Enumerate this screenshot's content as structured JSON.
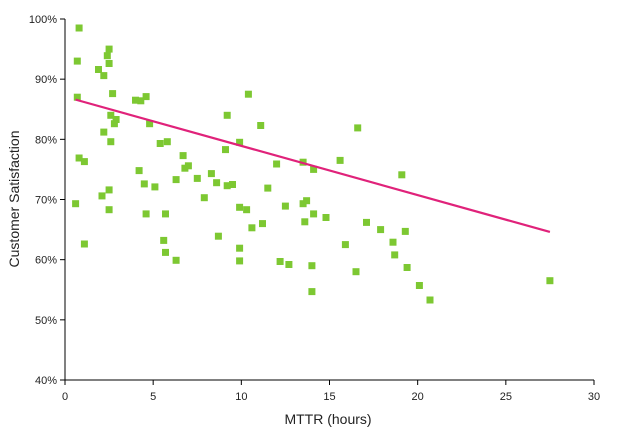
{
  "chart_data": {
    "type": "scatter",
    "title": "",
    "xlabel": "MTTR (hours)",
    "ylabel": "Customer Satisfaction",
    "xlim": [
      0,
      30
    ],
    "ylim": [
      40,
      100
    ],
    "xticks": [
      "0",
      "5",
      "10",
      "15",
      "20",
      "25",
      "30"
    ],
    "yticks": [
      "40%",
      "50%",
      "60%",
      "70%",
      "80%",
      "90%",
      "100%"
    ],
    "grid": false,
    "legend": "none",
    "colors": {
      "points": "#7dc832",
      "trendline": "#e0227a",
      "axis": "#000000"
    },
    "points": [
      [
        0.8,
        98.5
      ],
      [
        0.7,
        93.0
      ],
      [
        0.7,
        87.0
      ],
      [
        0.6,
        69.3
      ],
      [
        0.8,
        76.9
      ],
      [
        1.1,
        76.3
      ],
      [
        1.1,
        62.6
      ],
      [
        1.9,
        91.6
      ],
      [
        2.2,
        90.6
      ],
      [
        2.4,
        93.9
      ],
      [
        2.5,
        95.0
      ],
      [
        2.5,
        92.6
      ],
      [
        2.7,
        87.6
      ],
      [
        2.6,
        84.0
      ],
      [
        2.9,
        83.3
      ],
      [
        2.8,
        82.6
      ],
      [
        2.2,
        81.2
      ],
      [
        2.6,
        79.6
      ],
      [
        2.1,
        70.6
      ],
      [
        2.5,
        71.6
      ],
      [
        2.5,
        68.3
      ],
      [
        4.0,
        86.5
      ],
      [
        4.3,
        86.4
      ],
      [
        4.6,
        87.1
      ],
      [
        4.8,
        82.6
      ],
      [
        5.4,
        79.3
      ],
      [
        5.8,
        79.6
      ],
      [
        4.2,
        74.8
      ],
      [
        4.5,
        72.6
      ],
      [
        5.1,
        72.1
      ],
      [
        4.6,
        67.6
      ],
      [
        5.7,
        67.6
      ],
      [
        5.6,
        63.2
      ],
      [
        5.7,
        61.2
      ],
      [
        6.3,
        73.3
      ],
      [
        6.7,
        77.3
      ],
      [
        6.8,
        75.2
      ],
      [
        7.0,
        75.6
      ],
      [
        6.3,
        59.9
      ],
      [
        7.5,
        73.5
      ],
      [
        7.9,
        70.3
      ],
      [
        8.3,
        74.3
      ],
      [
        8.6,
        72.8
      ],
      [
        8.7,
        63.9
      ],
      [
        9.2,
        84.0
      ],
      [
        9.1,
        78.3
      ],
      [
        9.2,
        72.3
      ],
      [
        9.5,
        72.5
      ],
      [
        9.9,
        79.5
      ],
      [
        9.9,
        68.7
      ],
      [
        9.9,
        61.9
      ],
      [
        9.9,
        59.8
      ],
      [
        10.4,
        87.5
      ],
      [
        10.3,
        68.3
      ],
      [
        10.6,
        65.3
      ],
      [
        11.1,
        82.3
      ],
      [
        11.2,
        66.0
      ],
      [
        11.5,
        71.9
      ],
      [
        12.0,
        75.9
      ],
      [
        12.2,
        59.7
      ],
      [
        12.5,
        68.9
      ],
      [
        12.7,
        59.2
      ],
      [
        13.5,
        76.2
      ],
      [
        13.5,
        69.3
      ],
      [
        13.7,
        69.8
      ],
      [
        13.6,
        66.3
      ],
      [
        14.1,
        75.0
      ],
      [
        14.1,
        67.6
      ],
      [
        14.0,
        59.0
      ],
      [
        14.0,
        54.7
      ],
      [
        14.8,
        67.0
      ],
      [
        15.6,
        76.5
      ],
      [
        15.9,
        62.5
      ],
      [
        16.6,
        81.9
      ],
      [
        16.5,
        58.0
      ],
      [
        17.1,
        66.2
      ],
      [
        17.9,
        65.0
      ],
      [
        18.6,
        62.9
      ],
      [
        18.7,
        60.8
      ],
      [
        19.1,
        74.1
      ],
      [
        19.3,
        64.7
      ],
      [
        19.4,
        58.7
      ],
      [
        20.1,
        55.7
      ],
      [
        20.7,
        53.3
      ],
      [
        27.5,
        56.5
      ]
    ],
    "trendline": {
      "x": [
        0.6,
        27.5
      ],
      "y": [
        86.6,
        64.6
      ]
    }
  }
}
